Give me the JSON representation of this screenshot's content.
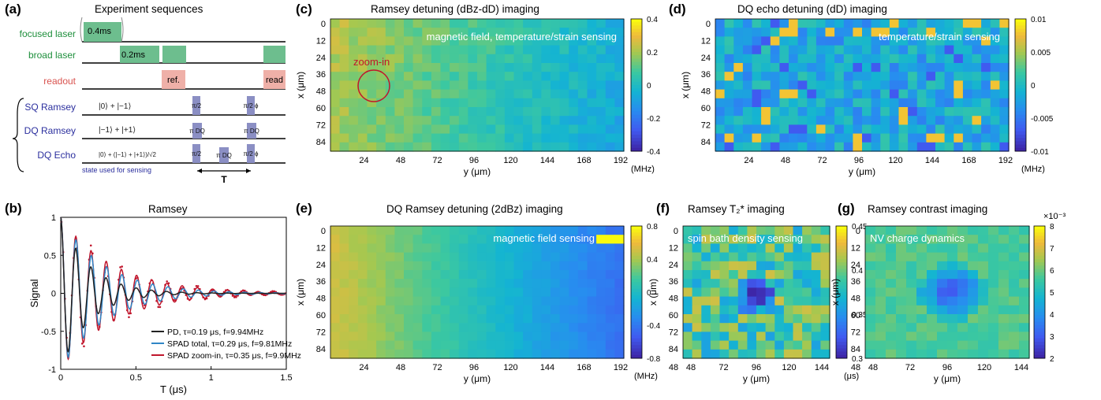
{
  "panels": {
    "a": {
      "label": "(a)",
      "title": "Experiment sequences",
      "rows": [
        "focused laser",
        "broad laser",
        "readout",
        "SQ Ramsey",
        "DQ Ramsey",
        "DQ Echo"
      ],
      "pulse_labels": {
        "focused": "0.4ms",
        "broad": "0.2ms",
        "ref": "ref.",
        "read": "read"
      },
      "states": [
        "|0⟩ + |−1⟩",
        "|−1⟩ + |+1⟩",
        "|0⟩ + (|−1⟩ + |+1⟩)/√2"
      ],
      "state_note": "state used for sensing",
      "pi2": "π/2",
      "pi2_phi": "π/2 ϕ",
      "pi_dq": "π DQ",
      "period": "T",
      "colors": {
        "laser": "#6dbe8e",
        "readout": "#efb0a8",
        "pulse": "#8b8fc4",
        "green_text": "#1e8f3c",
        "red_text": "#d9534f",
        "blue_text": "#2b2f9e"
      }
    },
    "b": {
      "label": "(b)",
      "title": "Ramsey",
      "legend": [
        "PD, τ=0.19 μs, f=9.94MHz",
        "SPAD total, τ=0.29 μs, f=9.81MHz",
        "SPAD zoom-in, τ=0.35 μs, f=9.9MHz"
      ]
    },
    "c": {
      "label": "(c)",
      "title": "Ramsey detuning (dBz-dD) imaging",
      "annotation": "magnetic field, temperature/strain sensing",
      "zoom_label": "zoom-in",
      "cbar_ticks": [
        "0.4",
        "0.2",
        "0",
        "-0.2",
        "-0.4"
      ],
      "unit": "(MHz)"
    },
    "d": {
      "label": "(d)",
      "title": "DQ echo  detuning (dD) imaging",
      "annotation": "temperature/strain sensing",
      "cbar_ticks": [
        "0.01",
        "0.005",
        "0",
        "-0.005",
        "-0.01"
      ],
      "unit": "(MHz)"
    },
    "e": {
      "label": "(e)",
      "title": "DQ Ramsey detuning (2dBz) imaging",
      "annotation": "magnetic field sensing",
      "cbar_ticks": [
        "0.8",
        "0.4",
        "0",
        "-0.4",
        "-0.8"
      ],
      "unit": "(MHz)"
    },
    "f": {
      "label": "(f)",
      "title": "Ramsey T₂* imaging",
      "annotation": "spin bath density sensing",
      "cbar_ticks": [
        "0.45",
        "0.4",
        "0.35",
        "0.3"
      ],
      "unit": "(μs)"
    },
    "g": {
      "label": "(g)",
      "title": "Ramsey contrast imaging",
      "annotation": "NV charge dynamics",
      "cbar_ticks": [
        "8",
        "7",
        "6",
        "5",
        "4",
        "3",
        "2"
      ],
      "unit": "×10⁻³"
    }
  },
  "axes": {
    "x_label": "x (μm)",
    "y_label": "y (μm)",
    "x_ticks": [
      "0",
      "12",
      "24",
      "36",
      "48",
      "60",
      "72",
      "84"
    ],
    "y_ticks_wide": [
      "24",
      "48",
      "72",
      "96",
      "120",
      "144",
      "168",
      "192"
    ],
    "y_ticks_narrow": [
      "48",
      "72",
      "96",
      "120",
      "144"
    ]
  },
  "chart_data": {
    "type": "line",
    "title": "Ramsey",
    "xlabel": "T (μs)",
    "ylabel": "Signal",
    "xlim": [
      0,
      1.5
    ],
    "ylim": [
      -1,
      1
    ],
    "xticks": [
      "0",
      "0.5",
      "1",
      "1.5"
    ],
    "yticks": [
      "1",
      "0.5",
      "0",
      "-0.5",
      "-1"
    ],
    "series": [
      {
        "name": "PD, τ=0.19 μs, f=9.94MHz",
        "tau_us": 0.19,
        "f_MHz": 9.94,
        "color": "#222222"
      },
      {
        "name": "SPAD total, τ=0.29 μs, f=9.81MHz",
        "tau_us": 0.29,
        "f_MHz": 9.81,
        "color": "#2f86c6"
      },
      {
        "name": "SPAD zoom-in, τ=0.35 μs, f=9.9MHz",
        "tau_us": 0.35,
        "f_MHz": 9.9,
        "color": "#c0162c"
      }
    ]
  }
}
